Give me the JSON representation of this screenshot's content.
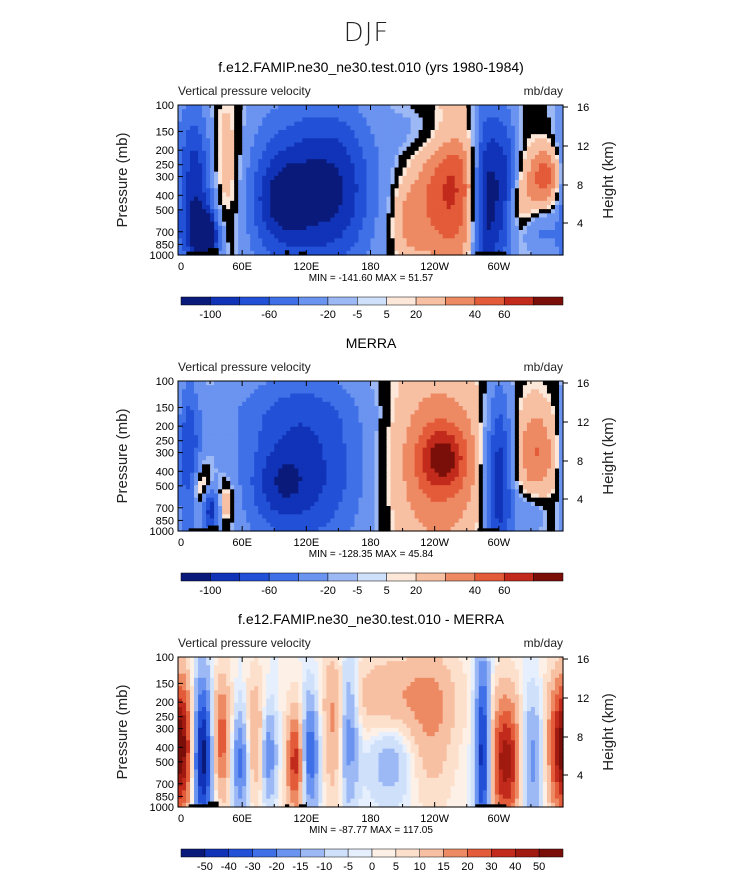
{
  "page": {
    "title": "DJF"
  },
  "chart_data": [
    {
      "type": "heatmap",
      "title": "f.e12.FAMIP.ne30_ne30.test.010 (yrs 1980-1984)",
      "subtitle_left": "Vertical pressure velocity",
      "subtitle_right": "mb/day",
      "ylabel": "Pressure (mb)",
      "ylabel_right": "Height (km)",
      "xlabel": "",
      "x_ticks": [
        "0",
        "60E",
        "120E",
        "180",
        "120W",
        "60W"
      ],
      "y_ticks": [
        "100",
        "150",
        "200",
        "250",
        "300",
        "400",
        "500",
        "700",
        "850",
        "1000"
      ],
      "y_ticks_right": [
        "16",
        "12",
        "8",
        "4"
      ],
      "xlim": [
        0,
        360
      ],
      "ylim": [
        1000,
        100
      ],
      "stats": "MIN = -141.60   MAX =  51.57",
      "colorbar_labels": [
        "-100",
        "-60",
        "-20",
        "-5",
        "5",
        "20",
        "40",
        "60"
      ],
      "palette": "diverging-12",
      "features": [
        {
          "lon": 18,
          "p": 380,
          "w": 16,
          "dp": 620,
          "v": -1.0
        },
        {
          "lon": 26,
          "p": 750,
          "w": 8,
          "dp": 350,
          "v": -1.1
        },
        {
          "lon": 40,
          "p": 300,
          "w": 14,
          "dp": 500,
          "v": 0.6
        },
        {
          "lon": 115,
          "p": 380,
          "w": 40,
          "dp": 700,
          "v": -0.8
        },
        {
          "lon": 95,
          "p": 450,
          "w": 18,
          "dp": 400,
          "v": -0.35
        },
        {
          "lon": 155,
          "p": 350,
          "w": 25,
          "dp": 600,
          "v": -0.4
        },
        {
          "lon": 215,
          "p": 600,
          "w": 12,
          "dp": 500,
          "v": 0.35
        },
        {
          "lon": 255,
          "p": 350,
          "w": 22,
          "dp": 500,
          "v": 0.75
        },
        {
          "lon": 242,
          "p": 150,
          "w": 25,
          "dp": 100,
          "v": -0.3
        },
        {
          "lon": 287,
          "p": 450,
          "w": 9,
          "dp": 800,
          "v": -1.05
        },
        {
          "lon": 305,
          "p": 350,
          "w": 9,
          "dp": 600,
          "v": -0.75
        },
        {
          "lon": 320,
          "p": 500,
          "w": 10,
          "dp": 400,
          "v": 0.3
        },
        {
          "lon": 345,
          "p": 300,
          "w": 12,
          "dp": 200,
          "v": 0.7
        },
        {
          "lon": 335,
          "p": 700,
          "w": 12,
          "dp": 300,
          "v": -0.35
        }
      ],
      "topography": [
        {
          "lon0": 8,
          "lon1": 28,
          "p_top": 950
        },
        {
          "lon0": 28,
          "lon1": 38,
          "p_top": 900
        },
        {
          "lon0": 100,
          "lon1": 104,
          "p_top": 930
        },
        {
          "lon0": 113,
          "lon1": 120,
          "p_top": 950
        },
        {
          "lon0": 278,
          "lon1": 307,
          "p_top": 950
        }
      ]
    },
    {
      "type": "heatmap",
      "title": "MERRA",
      "subtitle_left": "Vertical pressure velocity",
      "subtitle_right": "mb/day",
      "ylabel": "Pressure (mb)",
      "ylabel_right": "Height (km)",
      "xlabel": "",
      "x_ticks": [
        "0",
        "60E",
        "120E",
        "180",
        "120W",
        "60W"
      ],
      "y_ticks": [
        "100",
        "150",
        "200",
        "250",
        "300",
        "400",
        "500",
        "700",
        "850",
        "1000"
      ],
      "y_ticks_right": [
        "16",
        "12",
        "8",
        "4"
      ],
      "xlim": [
        0,
        360
      ],
      "ylim": [
        1000,
        100
      ],
      "stats": "MIN = -128.35   MAX =  45.84",
      "colorbar_labels": [
        "-100",
        "-60",
        "-20",
        "-5",
        "5",
        "20",
        "40",
        "60"
      ],
      "palette": "diverging-12",
      "features": [
        {
          "lon": 10,
          "p": 350,
          "w": 8,
          "dp": 500,
          "v": -0.7
        },
        {
          "lon": 22,
          "p": 550,
          "w": 8,
          "dp": 300,
          "v": 0.55
        },
        {
          "lon": 30,
          "p": 700,
          "w": 6,
          "dp": 300,
          "v": -0.9
        },
        {
          "lon": 45,
          "p": 650,
          "w": 6,
          "dp": 300,
          "v": 0.4
        },
        {
          "lon": 120,
          "p": 400,
          "w": 45,
          "dp": 700,
          "v": -0.75
        },
        {
          "lon": 95,
          "p": 500,
          "w": 18,
          "dp": 400,
          "v": -0.3
        },
        {
          "lon": 100,
          "p": 150,
          "w": 60,
          "dp": 100,
          "v": -0.15
        },
        {
          "lon": 240,
          "p": 350,
          "w": 35,
          "dp": 800,
          "v": 0.55
        },
        {
          "lon": 248,
          "p": 330,
          "w": 14,
          "dp": 200,
          "v": 0.55
        },
        {
          "lon": 300,
          "p": 450,
          "w": 10,
          "dp": 700,
          "v": -0.95
        },
        {
          "lon": 335,
          "p": 300,
          "w": 14,
          "dp": 300,
          "v": 0.5
        },
        {
          "lon": 330,
          "p": 750,
          "w": 12,
          "dp": 300,
          "v": -0.3
        }
      ],
      "topography": [
        {
          "lon0": 10,
          "lon1": 28,
          "p_top": 960
        },
        {
          "lon0": 28,
          "lon1": 38,
          "p_top": 920
        },
        {
          "lon0": 280,
          "lon1": 300,
          "p_top": 960
        }
      ]
    },
    {
      "type": "heatmap",
      "title": "f.e12.FAMIP.ne30_ne30.test.010 - MERRA",
      "subtitle_left": "Vertical pressure velocity",
      "subtitle_right": "mb/day",
      "ylabel": "Pressure (mb)",
      "ylabel_right": "Height (km)",
      "xlabel": "",
      "x_ticks": [
        "0",
        "60E",
        "120E",
        "180",
        "120W",
        "60W"
      ],
      "y_ticks": [
        "100",
        "150",
        "200",
        "250",
        "300",
        "400",
        "500",
        "700",
        "850",
        "1000"
      ],
      "y_ticks_right": [
        "16",
        "12",
        "8",
        "4"
      ],
      "xlim": [
        0,
        360
      ],
      "ylim": [
        1000,
        100
      ],
      "stats": "MIN = -87.77   MAX = 117.05",
      "colorbar_labels": [
        "-50",
        "-40",
        "-30",
        "-20",
        "-15",
        "-10",
        "-5",
        "0",
        "5",
        "10",
        "15",
        "20",
        "30",
        "40",
        "50"
      ],
      "palette": "diverging-16",
      "features": [
        {
          "lon": 5,
          "p": 400,
          "w": 8,
          "dp": 500,
          "v": 0.75
        },
        {
          "lon": 23,
          "p": 450,
          "w": 7,
          "dp": 600,
          "v": -1.1
        },
        {
          "lon": 40,
          "p": 350,
          "w": 7,
          "dp": 400,
          "v": 0.6
        },
        {
          "lon": 58,
          "p": 500,
          "w": 6,
          "dp": 500,
          "v": -0.55
        },
        {
          "lon": 72,
          "p": 350,
          "w": 6,
          "dp": 400,
          "v": 0.35
        },
        {
          "lon": 85,
          "p": 450,
          "w": 5,
          "dp": 400,
          "v": -0.45
        },
        {
          "lon": 110,
          "p": 500,
          "w": 6,
          "dp": 500,
          "v": 0.75
        },
        {
          "lon": 123,
          "p": 450,
          "w": 6,
          "dp": 500,
          "v": -0.65
        },
        {
          "lon": 145,
          "p": 300,
          "w": 7,
          "dp": 400,
          "v": 0.3
        },
        {
          "lon": 160,
          "p": 300,
          "w": 6,
          "dp": 400,
          "v": -0.45
        },
        {
          "lon": 205,
          "p": 180,
          "w": 35,
          "dp": 150,
          "v": 0.3
        },
        {
          "lon": 198,
          "p": 500,
          "w": 14,
          "dp": 400,
          "v": -0.25
        },
        {
          "lon": 238,
          "p": 300,
          "w": 14,
          "dp": 400,
          "v": 0.25
        },
        {
          "lon": 285,
          "p": 450,
          "w": 5,
          "dp": 700,
          "v": -0.95
        },
        {
          "lon": 307,
          "p": 500,
          "w": 11,
          "dp": 600,
          "v": 0.9
        },
        {
          "lon": 330,
          "p": 500,
          "w": 9,
          "dp": 600,
          "v": -0.45
        },
        {
          "lon": 355,
          "p": 400,
          "w": 9,
          "dp": 500,
          "v": 0.55
        }
      ],
      "topography": [
        {
          "lon0": 10,
          "lon1": 28,
          "p_top": 960
        },
        {
          "lon0": 28,
          "lon1": 38,
          "p_top": 920
        },
        {
          "lon0": 100,
          "lon1": 104,
          "p_top": 960
        },
        {
          "lon0": 113,
          "lon1": 120,
          "p_top": 960
        },
        {
          "lon0": 278,
          "lon1": 307,
          "p_top": 960
        }
      ]
    }
  ],
  "palettes": {
    "diverging-12": [
      "#0a1a7a",
      "#1033b8",
      "#2250d6",
      "#3f70e8",
      "#6b93f0",
      "#9cb8f5",
      "#cfe0fb",
      "#fde7d8",
      "#f8c0a3",
      "#ee8a63",
      "#e35b39",
      "#c22a1c",
      "#7a0f0a"
    ],
    "diverging-16": [
      "#0a1a7a",
      "#1033b8",
      "#2250d6",
      "#3f70e8",
      "#6b93f0",
      "#9cb8f5",
      "#cfe0fb",
      "#e6effd",
      "#fdf0e6",
      "#fde0cc",
      "#f8c0a3",
      "#ee8a63",
      "#e35b39",
      "#c22a1c",
      "#a01a10",
      "#7a0f0a"
    ]
  }
}
